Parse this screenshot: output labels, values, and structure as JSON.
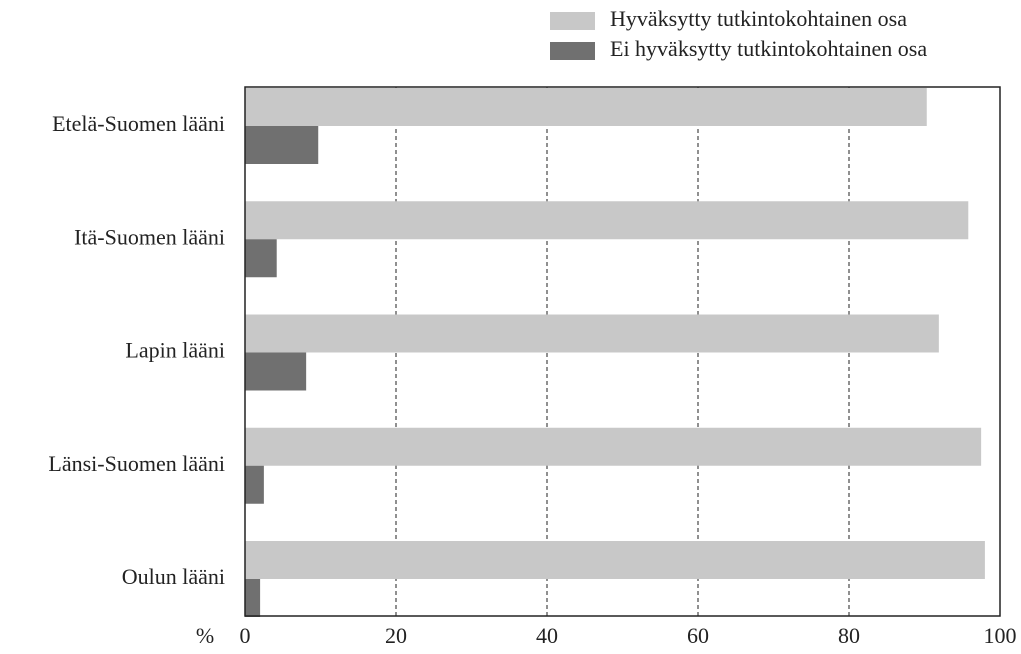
{
  "chart_data": {
    "type": "bar",
    "orientation": "horizontal",
    "categories": [
      "Etelä-Suomen lääni",
      "Itä-Suomen lääni",
      "Lapin lääni",
      "Länsi-Suomen lääni",
      "Oulun lääni"
    ],
    "series": [
      {
        "name": "Hyväksytty tutkintokohtainen osa",
        "color": "#c8c8c8",
        "values": [
          90.3,
          95.8,
          91.9,
          97.5,
          98.0
        ]
      },
      {
        "name": "Ei hyväksytty tutkintokohtainen osa",
        "color": "#707070",
        "values": [
          9.7,
          4.2,
          8.1,
          2.5,
          2.0
        ]
      }
    ],
    "x_label": "%",
    "xlim": [
      0,
      100
    ],
    "xticks": [
      0,
      20,
      40,
      60,
      80,
      100
    ],
    "grid": true,
    "legend": "top-right"
  }
}
